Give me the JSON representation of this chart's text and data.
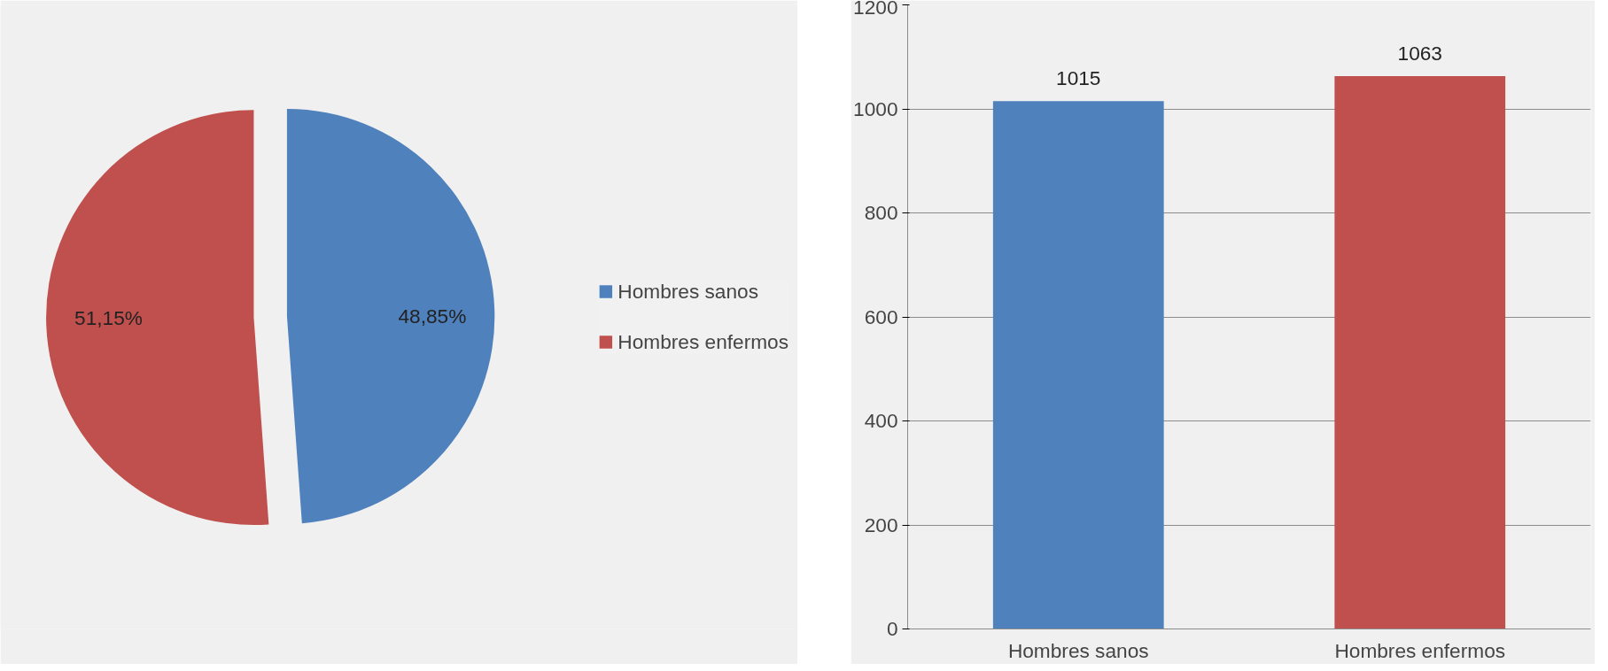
{
  "chart_data": [
    {
      "type": "pie",
      "categories": [
        "Hombres sanos",
        "Hombres enfermos"
      ],
      "values": [
        48.85,
        51.15
      ],
      "colors": [
        "#4f81bd",
        "#c0504d"
      ],
      "value_labels": [
        "48,85%",
        "51,15%"
      ],
      "legend": "right"
    },
    {
      "type": "bar",
      "categories": [
        "Hombres sanos",
        "Hombres enfermos"
      ],
      "values": [
        1015,
        1063
      ],
      "colors": [
        "#4f81bd",
        "#c0504d"
      ],
      "ylim": [
        0,
        1200
      ],
      "yticks": [
        0,
        200,
        400,
        600,
        800,
        1000,
        1200
      ],
      "grid": "y",
      "data_labels": true
    }
  ]
}
